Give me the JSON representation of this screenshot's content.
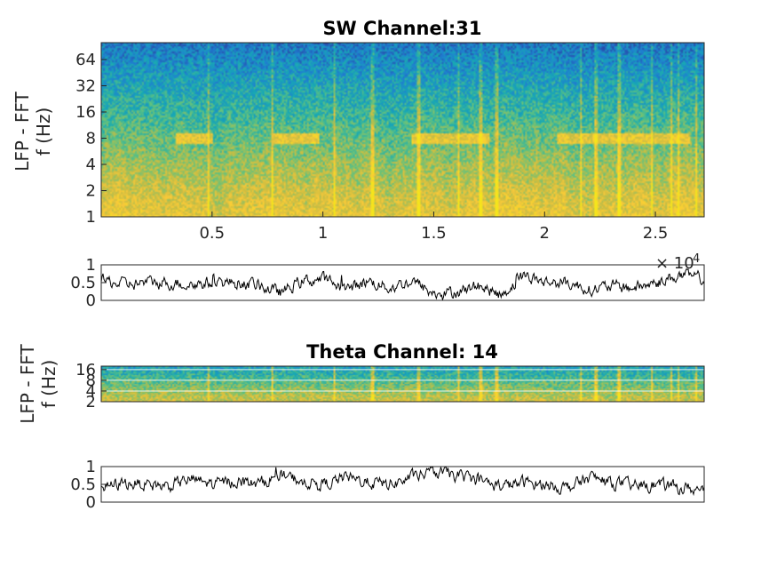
{
  "figure": {
    "background": "#ffffff"
  },
  "chart_data": [
    {
      "type": "heatmap",
      "title": "SW Channel:31",
      "ylabel_line1": "LFP - FFT",
      "ylabel_line2": "f (Hz)",
      "xlim": [
        0,
        2.72
      ],
      "x_scale_exponent_base": "× 10",
      "x_scale_exponent_power": "4",
      "x_ticks": [
        {
          "value": 0.5,
          "label": "0.5"
        },
        {
          "value": 1,
          "label": "1"
        },
        {
          "value": 1.5,
          "label": "1.5"
        },
        {
          "value": 2,
          "label": "2"
        },
        {
          "value": 2.5,
          "label": "2.5"
        }
      ],
      "y_scale": "log2",
      "ylim": [
        1,
        100
      ],
      "y_ticks": [
        {
          "value": 1,
          "label": "1"
        },
        {
          "value": 2,
          "label": "2"
        },
        {
          "value": 4,
          "label": "4"
        },
        {
          "value": 8,
          "label": "8"
        },
        {
          "value": 16,
          "label": "16"
        },
        {
          "value": 32,
          "label": "32"
        },
        {
          "value": 64,
          "label": "64"
        }
      ],
      "colormap": [
        "#2a3b9c",
        "#1f7fd1",
        "#17a9b4",
        "#64c27d",
        "#c9bd42",
        "#f9c93a",
        "#f5e51b"
      ],
      "band_frequency_hz": 8,
      "band_intervals": [
        [
          0.33,
          0.5
        ],
        [
          0.77,
          0.98
        ],
        [
          1.4,
          1.75
        ],
        [
          2.05,
          2.65
        ]
      ],
      "broadband_events": [
        0.48,
        0.77,
        1.05,
        1.22,
        1.43,
        1.61,
        1.71,
        1.78,
        2.16,
        2.23,
        2.33,
        2.48,
        2.57,
        2.6,
        2.68
      ]
    },
    {
      "type": "line",
      "ylim": [
        0,
        1
      ],
      "xlim": [
        0,
        2.72
      ],
      "y_ticks": [
        {
          "value": 0,
          "label": "0"
        },
        {
          "value": 0.5,
          "label": "0.5"
        },
        {
          "value": 1,
          "label": "1"
        }
      ],
      "series": [
        {
          "color": "#000000",
          "x": [
            0,
            0.1,
            0.2,
            0.3,
            0.4,
            0.5,
            0.6,
            0.7,
            0.8,
            0.9,
            1.0,
            1.1,
            1.2,
            1.3,
            1.4,
            1.5,
            1.6,
            1.7,
            1.8,
            1.9,
            2.0,
            2.1,
            2.2,
            2.3,
            2.4,
            2.5,
            2.6,
            2.72
          ],
          "values": [
            0.55,
            0.45,
            0.5,
            0.5,
            0.45,
            0.5,
            0.5,
            0.45,
            0.2,
            0.55,
            0.6,
            0.3,
            0.55,
            0.35,
            0.55,
            0.15,
            0.25,
            0.4,
            0.15,
            0.7,
            0.5,
            0.5,
            0.3,
            0.4,
            0.35,
            0.5,
            0.7,
            0.6
          ]
        }
      ]
    },
    {
      "type": "heatmap",
      "title": "Theta Channel: 14",
      "ylabel_line1": "LFP - FFT",
      "ylabel_line2": "f (Hz)",
      "xlim": [
        0,
        2.72
      ],
      "y_scale": "log2",
      "ylim": [
        2,
        20
      ],
      "y_ticks": [
        {
          "value": 2,
          "label": "2"
        },
        {
          "value": 4,
          "label": "4"
        },
        {
          "value": 8,
          "label": "8"
        },
        {
          "value": 16,
          "label": "16"
        }
      ],
      "grid_lines_hz": [
        4,
        8,
        16
      ]
    },
    {
      "type": "line",
      "ylim": [
        0,
        1
      ],
      "xlim": [
        0,
        2.72
      ],
      "y_ticks": [
        {
          "value": 0,
          "label": "0"
        },
        {
          "value": 0.5,
          "label": "0.5"
        },
        {
          "value": 1,
          "label": "1"
        }
      ],
      "series": [
        {
          "color": "#000000",
          "x": [
            0,
            0.1,
            0.2,
            0.3,
            0.4,
            0.5,
            0.6,
            0.7,
            0.8,
            0.9,
            1.0,
            1.1,
            1.2,
            1.3,
            1.4,
            1.5,
            1.6,
            1.7,
            1.8,
            1.9,
            2.0,
            2.1,
            2.2,
            2.3,
            2.4,
            2.5,
            2.6,
            2.72
          ],
          "values": [
            0.4,
            0.55,
            0.5,
            0.45,
            0.65,
            0.5,
            0.6,
            0.5,
            0.75,
            0.6,
            0.5,
            0.7,
            0.55,
            0.5,
            0.7,
            0.85,
            0.75,
            0.6,
            0.45,
            0.55,
            0.5,
            0.4,
            0.7,
            0.55,
            0.45,
            0.5,
            0.4,
            0.35
          ]
        }
      ]
    }
  ]
}
